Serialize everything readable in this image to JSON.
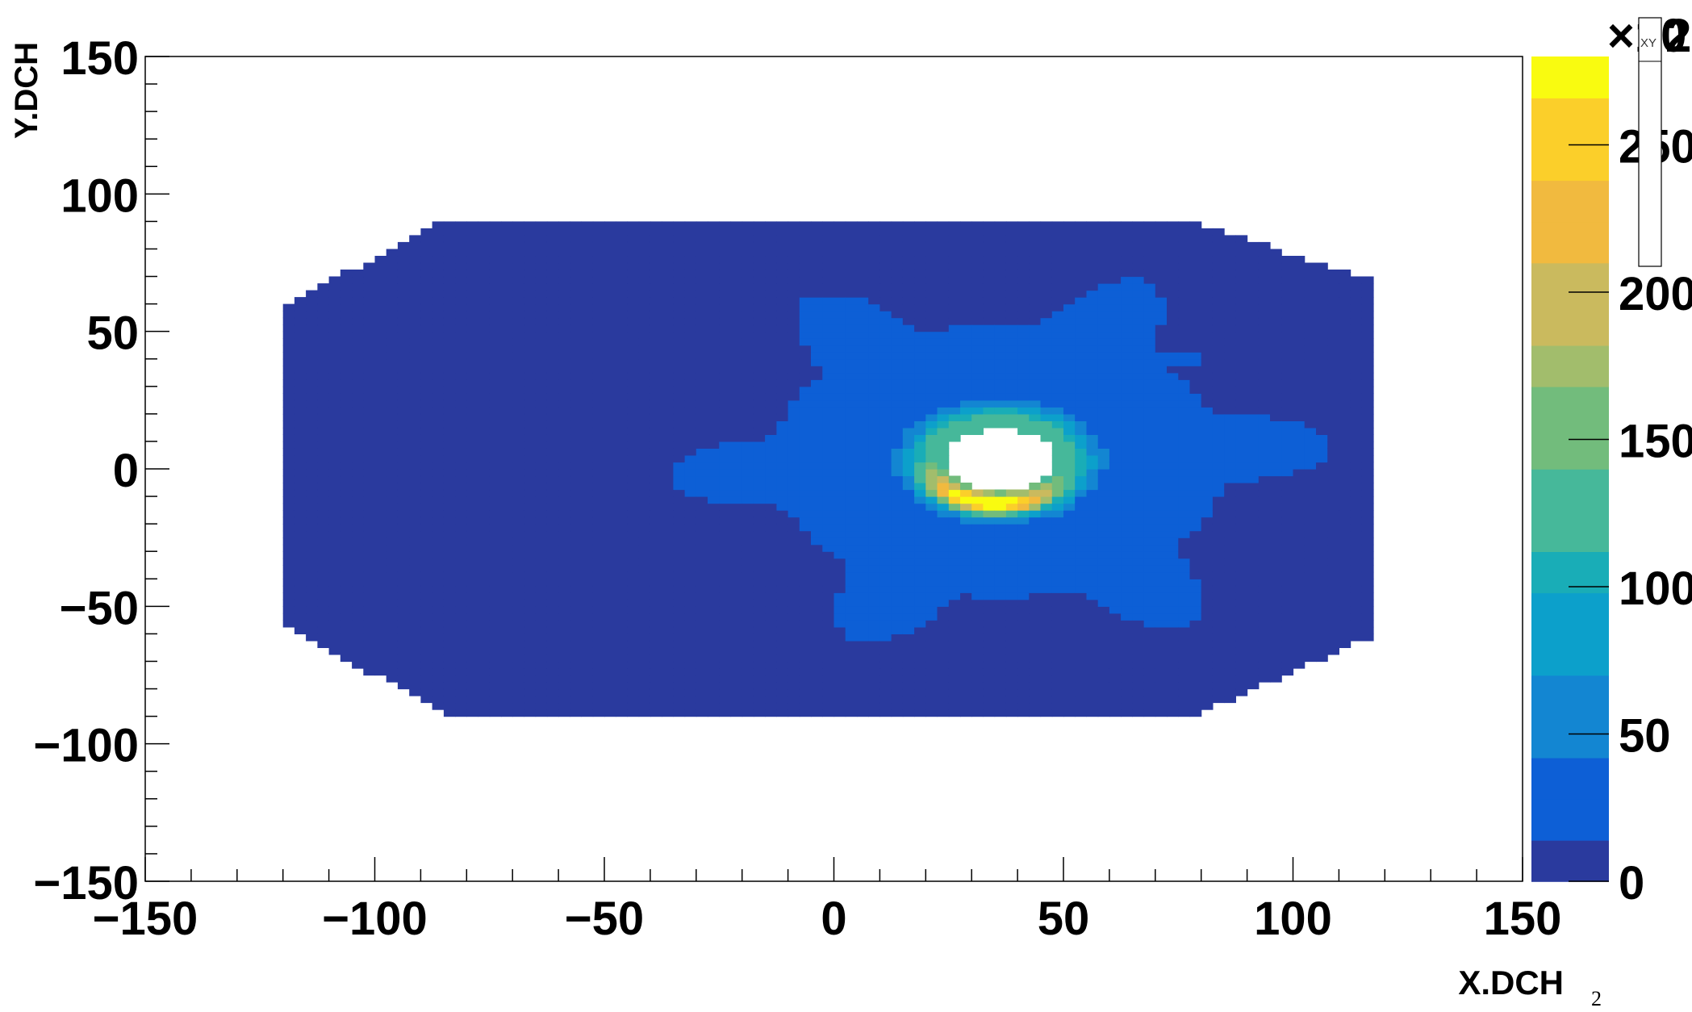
{
  "chart_data": {
    "type": "heatmap",
    "title": "",
    "xlabel": "X.DCH",
    "ylabel": "Y.DCH",
    "xlim": [
      -150,
      150
    ],
    "ylim": [
      -150,
      150
    ],
    "x_ticks": [
      -150,
      -100,
      -50,
      0,
      50,
      100,
      150
    ],
    "y_ticks": [
      -150,
      -100,
      -50,
      0,
      50,
      100,
      150
    ],
    "x_tick_labels": [
      "−150",
      "−100",
      "−50",
      "0",
      "50",
      "100",
      "150"
    ],
    "y_tick_labels": [
      "−150",
      "−100",
      "−50",
      "0",
      "50",
      "100",
      "150"
    ],
    "z_range": [
      0,
      280
    ],
    "z_ticks": [
      0,
      50,
      100,
      150,
      200,
      250
    ],
    "z_tick_labels": [
      "0",
      "50",
      "100",
      "150",
      "200",
      "250"
    ],
    "z_exponent_label": "×10",
    "z_exponent": "2",
    "grid": false,
    "background_level": 0,
    "ring_peak": 270,
    "hole_center": [
      36,
      3
    ],
    "hole_radius": 12,
    "colors": {
      "background": "#ffffff",
      "palette": [
        "#2a3a9e",
        "#0d5fd6",
        "#1386d2",
        "#0ca0cb",
        "#19adb7",
        "#46b89a",
        "#72bc7c",
        "#a2bd6c",
        "#caba5e",
        "#f1ba3f",
        "#fbcf2a",
        "#f9fb10"
      ]
    }
  },
  "overlay": {
    "stats_box_label": "XY",
    "footer_number": "2"
  }
}
